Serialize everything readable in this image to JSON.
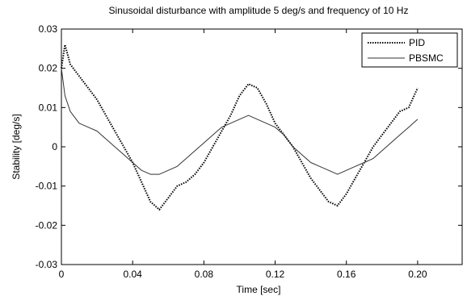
{
  "chart_data": {
    "type": "line",
    "title": "Sinusoidal disturbance with amplitude 5 deg/s and frequency of 10 Hz",
    "xlabel": "Time [sec]",
    "ylabel": "Stability [deg/s]",
    "xlim": [
      0,
      0.225
    ],
    "ylim": [
      -0.03,
      0.03
    ],
    "xticks": [
      0,
      0.04,
      0.08,
      0.12,
      0.16,
      0.2
    ],
    "xtick_labels": [
      "0",
      "0.04",
      "0.08",
      "0.12",
      "0.16",
      "0.20"
    ],
    "yticks": [
      -0.03,
      -0.02,
      -0.01,
      0,
      0.01,
      0.02,
      0.03
    ],
    "ytick_labels": [
      "-0.03",
      "-0.02",
      "-0.01",
      "0",
      "0.01",
      "0.02",
      "0.03"
    ],
    "grid": false,
    "legend_position": "top-right",
    "series": [
      {
        "name": "PID",
        "style": "dotted",
        "color": "#000000",
        "x": [
          0,
          0.002,
          0.005,
          0.01,
          0.015,
          0.02,
          0.025,
          0.03,
          0.035,
          0.04,
          0.045,
          0.05,
          0.055,
          0.06,
          0.065,
          0.07,
          0.075,
          0.08,
          0.085,
          0.09,
          0.095,
          0.1,
          0.105,
          0.11,
          0.115,
          0.12,
          0.125,
          0.13,
          0.135,
          0.14,
          0.145,
          0.15,
          0.155,
          0.16,
          0.165,
          0.17,
          0.175,
          0.18,
          0.185,
          0.19,
          0.195,
          0.2
        ],
        "y": [
          0.02,
          0.026,
          0.021,
          0.018,
          0.015,
          0.012,
          0.008,
          0.004,
          0.0,
          -0.004,
          -0.009,
          -0.014,
          -0.016,
          -0.013,
          -0.01,
          -0.009,
          -0.007,
          -0.004,
          0.0,
          0.004,
          0.008,
          0.013,
          0.016,
          0.015,
          0.011,
          0.006,
          0.003,
          0.0,
          -0.004,
          -0.008,
          -0.011,
          -0.014,
          -0.015,
          -0.012,
          -0.008,
          -0.004,
          0.0,
          0.003,
          0.006,
          0.009,
          0.01,
          0.015
        ]
      },
      {
        "name": "PBSMC",
        "style": "solid",
        "color": "#333333",
        "x": [
          0,
          0.002,
          0.005,
          0.01,
          0.015,
          0.02,
          0.025,
          0.03,
          0.035,
          0.04,
          0.045,
          0.05,
          0.055,
          0.06,
          0.065,
          0.07,
          0.075,
          0.08,
          0.085,
          0.09,
          0.095,
          0.1,
          0.105,
          0.11,
          0.115,
          0.12,
          0.125,
          0.13,
          0.135,
          0.14,
          0.145,
          0.15,
          0.155,
          0.16,
          0.165,
          0.17,
          0.175,
          0.18,
          0.185,
          0.19,
          0.195,
          0.2
        ],
        "y": [
          0.02,
          0.013,
          0.009,
          0.006,
          0.005,
          0.004,
          0.002,
          0.0,
          -0.002,
          -0.004,
          -0.006,
          -0.007,
          -0.007,
          -0.006,
          -0.005,
          -0.003,
          -0.001,
          0.001,
          0.003,
          0.005,
          0.006,
          0.007,
          0.008,
          0.007,
          0.006,
          0.005,
          0.003,
          0.0,
          -0.002,
          -0.004,
          -0.005,
          -0.006,
          -0.007,
          -0.006,
          -0.005,
          -0.004,
          -0.003,
          -0.001,
          0.001,
          0.003,
          0.005,
          0.007
        ]
      }
    ]
  }
}
